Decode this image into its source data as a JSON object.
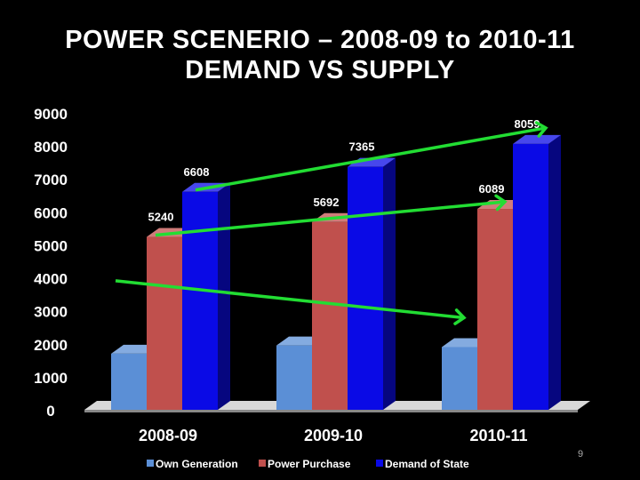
{
  "slide": {
    "title_line1": "POWER SCENERIO – 2008-09 to 2010-11",
    "title_line2": "DEMAND VS SUPPLY",
    "page_number": "9"
  },
  "colors": {
    "background": "#000000",
    "own_generation": "#5b8fd6",
    "power_purchase": "#c0504d",
    "demand_of_state": "#0a0ae6",
    "arrow": "#22dd33"
  },
  "chart_data": {
    "type": "bar",
    "title": "POWER SCENERIO – 2008-09 to 2010-11 DEMAND VS SUPPLY",
    "categories": [
      "2008-09",
      "2009-10",
      "2010-11"
    ],
    "series": [
      {
        "name": "Own Generation",
        "values": [
          1700,
          1950,
          1900
        ],
        "labels": [
          "",
          "",
          ""
        ]
      },
      {
        "name": "Power Purchase",
        "values": [
          5240,
          5692,
          6089
        ],
        "labels": [
          "5240",
          "5692",
          "6089"
        ]
      },
      {
        "name": "Demand of State",
        "values": [
          6608,
          7365,
          8059
        ],
        "labels": [
          "6608",
          "7365",
          "8059"
        ]
      }
    ],
    "ylim": [
      0,
      9000
    ],
    "yticks": [
      "0",
      "1000",
      "2000",
      "3000",
      "4000",
      "5000",
      "6000",
      "7000",
      "8000",
      "9000"
    ],
    "legend_position": "bottom",
    "annotations": [
      {
        "type": "trend-arrow",
        "series": "Demand of State"
      },
      {
        "type": "trend-arrow",
        "series": "Power Purchase"
      },
      {
        "type": "trend-arrow",
        "series": "Own Generation"
      }
    ]
  }
}
